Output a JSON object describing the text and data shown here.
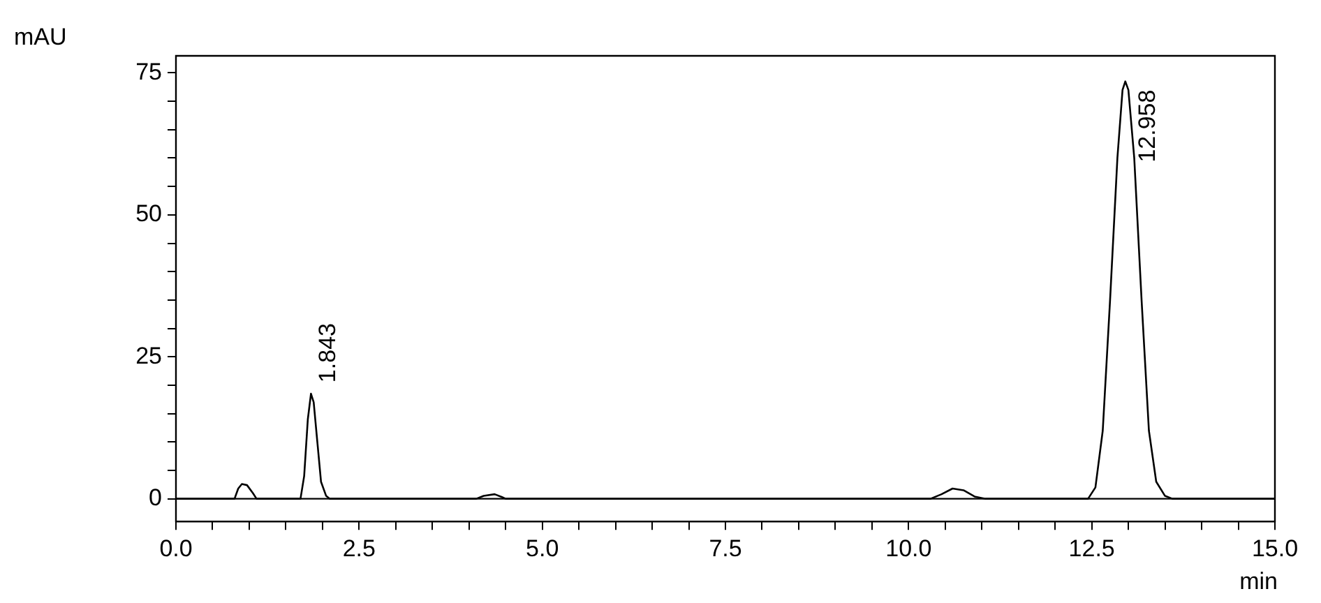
{
  "chart_data": {
    "type": "line",
    "xlabel": "min",
    "ylabel": "mAU",
    "x": [
      0,
      0.8,
      0.85,
      0.9,
      0.97,
      1.05,
      1.1,
      1.7,
      1.75,
      1.8,
      1.843,
      1.88,
      1.93,
      1.98,
      2.05,
      2.1,
      4.1,
      4.2,
      4.35,
      4.45,
      4.5,
      10.3,
      10.45,
      10.6,
      10.75,
      10.9,
      11.05,
      12.45,
      12.55,
      12.65,
      12.75,
      12.85,
      12.92,
      12.958,
      13.0,
      13.08,
      13.18,
      13.28,
      13.38,
      13.5,
      13.6,
      15
    ],
    "series": [
      {
        "color": "#000000",
        "values": [
          0,
          0,
          1.8,
          2.6,
          2.4,
          1,
          0,
          0,
          4,
          14,
          18.5,
          17,
          10,
          3,
          0.5,
          0,
          0,
          0.5,
          0.8,
          0.3,
          0,
          0,
          0.8,
          1.8,
          1.5,
          0.4,
          0,
          0,
          2,
          12,
          35,
          60,
          72,
          73.5,
          72,
          60,
          35,
          12,
          3,
          0.5,
          0,
          0
        ]
      }
    ],
    "xlim": [
      0,
      15
    ],
    "ylim": [
      -4,
      78
    ],
    "xticks": [
      {
        "value": 0,
        "label": "0.0"
      },
      {
        "value": 0.5,
        "label": null
      },
      {
        "value": 1,
        "label": null
      },
      {
        "value": 1.5,
        "label": null
      },
      {
        "value": 2,
        "label": null
      },
      {
        "value": 2.5,
        "label": "2.5"
      },
      {
        "value": 3,
        "label": null
      },
      {
        "value": 3.5,
        "label": null
      },
      {
        "value": 4,
        "label": null
      },
      {
        "value": 4.5,
        "label": null
      },
      {
        "value": 5,
        "label": "5.0"
      },
      {
        "value": 5.5,
        "label": null
      },
      {
        "value": 6,
        "label": null
      },
      {
        "value": 6.5,
        "label": null
      },
      {
        "value": 7,
        "label": null
      },
      {
        "value": 7.5,
        "label": "7.5"
      },
      {
        "value": 8,
        "label": null
      },
      {
        "value": 8.5,
        "label": null
      },
      {
        "value": 9,
        "label": null
      },
      {
        "value": 9.5,
        "label": null
      },
      {
        "value": 10,
        "label": "10.0"
      },
      {
        "value": 10.5,
        "label": null
      },
      {
        "value": 11,
        "label": null
      },
      {
        "value": 11.5,
        "label": null
      },
      {
        "value": 12,
        "label": null
      },
      {
        "value": 12.5,
        "label": "12.5"
      },
      {
        "value": 13,
        "label": null
      },
      {
        "value": 13.5,
        "label": null
      },
      {
        "value": 14,
        "label": null
      },
      {
        "value": 14.5,
        "label": null
      },
      {
        "value": 15,
        "label": "15.0"
      }
    ],
    "yticks": [
      0,
      {
        "value": 5,
        "label": null
      },
      {
        "value": 10,
        "label": null
      },
      {
        "value": 15,
        "label": null
      },
      {
        "value": 20,
        "label": null
      },
      25,
      {
        "value": 30,
        "label": null
      },
      {
        "value": 35,
        "label": null
      },
      {
        "value": 40,
        "label": null
      },
      {
        "value": 45,
        "label": null
      },
      50,
      {
        "value": 55,
        "label": null
      },
      {
        "value": 60,
        "label": null
      },
      {
        "value": 65,
        "label": null
      },
      {
        "value": 70,
        "label": null
      },
      75
    ],
    "ref_lines": [
      {
        "axis": "y",
        "value": 0,
        "label": null,
        "color": "#000000"
      }
    ],
    "annotations": [
      {
        "text": "1.843",
        "x": 1.843,
        "y": 18.5
      },
      {
        "text": "12.958",
        "x": 12.958,
        "y": 73.5
      }
    ],
    "grid": false,
    "legend": false,
    "marker": "none",
    "line_style": "solid"
  }
}
